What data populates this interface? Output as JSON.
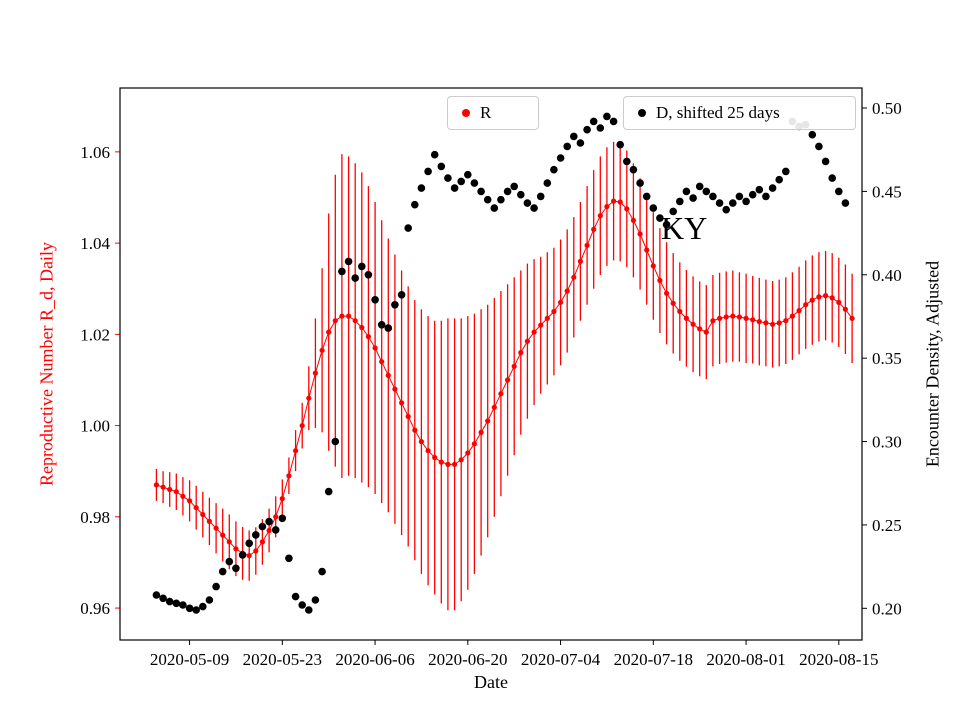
{
  "chart_data": {
    "type": "scatter",
    "title": "",
    "annotation": "KY",
    "xlabel": "Date",
    "ylabel_left": "Reproductive Number R_d, Daily",
    "ylabel_right": "Encounter Density, Adjusted",
    "colors": {
      "red": "#ff0000",
      "black": "#000000",
      "legend_frame": "#cccccc"
    },
    "x_tick_labels": [
      "2020-05-09",
      "2020-05-23",
      "2020-06-06",
      "2020-06-20",
      "2020-07-04",
      "2020-07-18",
      "2020-08-01",
      "2020-08-15"
    ],
    "yticks_left": [
      0.96,
      0.98,
      1.0,
      1.02,
      1.04,
      1.06
    ],
    "yticks_right": [
      0.2,
      0.25,
      0.3,
      0.35,
      0.4,
      0.45,
      0.5
    ],
    "ylim_left": [
      0.953,
      1.074
    ],
    "ylim_right": [
      0.181,
      0.512
    ],
    "xlim_days_from_first_tick": [
      -10.5,
      101.5
    ],
    "legend": [
      {
        "label": "R",
        "color": "#ff0000"
      },
      {
        "label": "D, shifted 25 days",
        "color": "#000000"
      }
    ],
    "series": [
      {
        "name": "R",
        "type": "errorbar",
        "axis": "left",
        "color": "#ff0000",
        "points": [
          [
            "2020-05-04",
            0.987,
            0.0035
          ],
          [
            "2020-05-05",
            0.9865,
            0.0035
          ],
          [
            "2020-05-06",
            0.986,
            0.0038
          ],
          [
            "2020-05-07",
            0.9855,
            0.004
          ],
          [
            "2020-05-08",
            0.9845,
            0.0042
          ],
          [
            "2020-05-09",
            0.9835,
            0.0045
          ],
          [
            "2020-05-10",
            0.982,
            0.0048
          ],
          [
            "2020-05-11",
            0.9805,
            0.005
          ],
          [
            "2020-05-12",
            0.979,
            0.0052
          ],
          [
            "2020-05-13",
            0.9775,
            0.0055
          ],
          [
            "2020-05-14",
            0.976,
            0.0058
          ],
          [
            "2020-05-15",
            0.9745,
            0.006
          ],
          [
            "2020-05-16",
            0.973,
            0.006
          ],
          [
            "2020-05-17",
            0.972,
            0.0058
          ],
          [
            "2020-05-18",
            0.9715,
            0.0055
          ],
          [
            "2020-05-19",
            0.9725,
            0.0052
          ],
          [
            "2020-05-20",
            0.9745,
            0.005
          ],
          [
            "2020-05-21",
            0.977,
            0.0048
          ],
          [
            "2020-05-22",
            0.98,
            0.0045
          ],
          [
            "2020-05-23",
            0.984,
            0.0042
          ],
          [
            "2020-05-24",
            0.989,
            0.004
          ],
          [
            "2020-05-25",
            0.9945,
            0.0045
          ],
          [
            "2020-05-26",
            1.0,
            0.005
          ],
          [
            "2020-05-27",
            1.006,
            0.007
          ],
          [
            "2020-05-28",
            1.0115,
            0.012
          ],
          [
            "2020-05-29",
            1.0165,
            0.018
          ],
          [
            "2020-05-30",
            1.0205,
            0.026
          ],
          [
            "2020-05-31",
            1.023,
            0.032
          ],
          [
            "2020-06-01",
            1.024,
            0.0355
          ],
          [
            "2020-06-02",
            1.024,
            0.035
          ],
          [
            "2020-06-03",
            1.023,
            0.0345
          ],
          [
            "2020-06-04",
            1.0215,
            0.034
          ],
          [
            "2020-06-05",
            1.0195,
            0.033
          ],
          [
            "2020-06-06",
            1.017,
            0.032
          ],
          [
            "2020-06-07",
            1.014,
            0.031
          ],
          [
            "2020-06-08",
            1.011,
            0.03
          ],
          [
            "2020-06-09",
            1.008,
            0.0295
          ],
          [
            "2020-06-10",
            1.005,
            0.029
          ],
          [
            "2020-06-11",
            1.002,
            0.0285
          ],
          [
            "2020-06-12",
            0.999,
            0.0285
          ],
          [
            "2020-06-13",
            0.9965,
            0.029
          ],
          [
            "2020-06-14",
            0.9945,
            0.0295
          ],
          [
            "2020-06-15",
            0.993,
            0.03
          ],
          [
            "2020-06-16",
            0.992,
            0.031
          ],
          [
            "2020-06-17",
            0.9915,
            0.032
          ],
          [
            "2020-06-18",
            0.9915,
            0.032
          ],
          [
            "2020-06-19",
            0.9925,
            0.031
          ],
          [
            "2020-06-20",
            0.994,
            0.03
          ],
          [
            "2020-06-21",
            0.996,
            0.0285
          ],
          [
            "2020-06-22",
            0.9985,
            0.027
          ],
          [
            "2020-06-23",
            1.001,
            0.0255
          ],
          [
            "2020-06-24",
            1.004,
            0.024
          ],
          [
            "2020-06-25",
            1.007,
            0.0225
          ],
          [
            "2020-06-26",
            1.01,
            0.021
          ],
          [
            "2020-06-27",
            1.013,
            0.0195
          ],
          [
            "2020-06-28",
            1.016,
            0.018
          ],
          [
            "2020-06-29",
            1.0185,
            0.017
          ],
          [
            "2020-06-30",
            1.0205,
            0.016
          ],
          [
            "2020-07-01",
            1.022,
            0.015
          ],
          [
            "2020-07-02",
            1.0235,
            0.0145
          ],
          [
            "2020-07-03",
            1.025,
            0.014
          ],
          [
            "2020-07-04",
            1.027,
            0.0138
          ],
          [
            "2020-07-05",
            1.0295,
            0.0135
          ],
          [
            "2020-07-06",
            1.0325,
            0.0132
          ],
          [
            "2020-07-07",
            1.036,
            0.013
          ],
          [
            "2020-07-08",
            1.0395,
            0.013
          ],
          [
            "2020-07-09",
            1.043,
            0.013
          ],
          [
            "2020-07-10",
            1.046,
            0.013
          ],
          [
            "2020-07-11",
            1.048,
            0.013
          ],
          [
            "2020-07-12",
            1.0492,
            0.013
          ],
          [
            "2020-07-13",
            1.049,
            0.013
          ],
          [
            "2020-07-14",
            1.0475,
            0.0128
          ],
          [
            "2020-07-15",
            1.045,
            0.0125
          ],
          [
            "2020-07-16",
            1.042,
            0.0122
          ],
          [
            "2020-07-17",
            1.0385,
            0.012
          ],
          [
            "2020-07-18",
            1.035,
            0.0118
          ],
          [
            "2020-07-19",
            1.0318,
            0.0115
          ],
          [
            "2020-07-20",
            1.029,
            0.0112
          ],
          [
            "2020-07-21",
            1.0268,
            0.011
          ],
          [
            "2020-07-22",
            1.025,
            0.0108
          ],
          [
            "2020-07-23",
            1.0235,
            0.0106
          ],
          [
            "2020-07-24",
            1.0222,
            0.0105
          ],
          [
            "2020-07-25",
            1.0212,
            0.0104
          ],
          [
            "2020-07-26",
            1.0205,
            0.0103
          ],
          [
            "2020-07-27",
            1.023,
            0.01
          ],
          [
            "2020-07-28",
            1.0235,
            0.01
          ],
          [
            "2020-07-29",
            1.0238,
            0.01
          ],
          [
            "2020-07-30",
            1.024,
            0.01
          ],
          [
            "2020-07-31",
            1.0238,
            0.0098
          ],
          [
            "2020-08-01",
            1.0235,
            0.0098
          ],
          [
            "2020-08-02",
            1.0232,
            0.0096
          ],
          [
            "2020-08-03",
            1.0228,
            0.0096
          ],
          [
            "2020-08-04",
            1.0225,
            0.0095
          ],
          [
            "2020-08-05",
            1.0222,
            0.0095
          ],
          [
            "2020-08-06",
            1.0225,
            0.0095
          ],
          [
            "2020-08-07",
            1.023,
            0.0095
          ],
          [
            "2020-08-08",
            1.024,
            0.0096
          ],
          [
            "2020-08-09",
            1.0252,
            0.0096
          ],
          [
            "2020-08-10",
            1.0265,
            0.0097
          ],
          [
            "2020-08-11",
            1.0275,
            0.0098
          ],
          [
            "2020-08-12",
            1.0282,
            0.0098
          ],
          [
            "2020-08-13",
            1.0285,
            0.0098
          ],
          [
            "2020-08-14",
            1.028,
            0.0098
          ],
          [
            "2020-08-15",
            1.027,
            0.0098
          ],
          [
            "2020-08-16",
            1.0255,
            0.0098
          ],
          [
            "2020-08-17",
            1.0235,
            0.0098
          ]
        ]
      },
      {
        "name": "D, shifted 25 days",
        "type": "scatter",
        "axis": "right",
        "color": "#000000",
        "points": [
          [
            "2020-05-04",
            0.208
          ],
          [
            "2020-05-05",
            0.206
          ],
          [
            "2020-05-06",
            0.204
          ],
          [
            "2020-05-07",
            0.203
          ],
          [
            "2020-05-08",
            0.202
          ],
          [
            "2020-05-09",
            0.2
          ],
          [
            "2020-05-10",
            0.199
          ],
          [
            "2020-05-11",
            0.201
          ],
          [
            "2020-05-12",
            0.205
          ],
          [
            "2020-05-13",
            0.213
          ],
          [
            "2020-05-14",
            0.222
          ],
          [
            "2020-05-15",
            0.228
          ],
          [
            "2020-05-16",
            0.224
          ],
          [
            "2020-05-17",
            0.232
          ],
          [
            "2020-05-18",
            0.239
          ],
          [
            "2020-05-19",
            0.244
          ],
          [
            "2020-05-20",
            0.249
          ],
          [
            "2020-05-21",
            0.252
          ],
          [
            "2020-05-22",
            0.247
          ],
          [
            "2020-05-23",
            0.254
          ],
          [
            "2020-05-24",
            0.23
          ],
          [
            "2020-05-25",
            0.207
          ],
          [
            "2020-05-26",
            0.202
          ],
          [
            "2020-05-27",
            0.199
          ],
          [
            "2020-05-28",
            0.205
          ],
          [
            "2020-05-29",
            0.222
          ],
          [
            "2020-05-30",
            0.27
          ],
          [
            "2020-05-31",
            0.3
          ],
          [
            "2020-06-01",
            0.402
          ],
          [
            "2020-06-02",
            0.408
          ],
          [
            "2020-06-03",
            0.398
          ],
          [
            "2020-06-04",
            0.405
          ],
          [
            "2020-06-05",
            0.4
          ],
          [
            "2020-06-06",
            0.385
          ],
          [
            "2020-06-07",
            0.37
          ],
          [
            "2020-06-08",
            0.368
          ],
          [
            "2020-06-09",
            0.382
          ],
          [
            "2020-06-10",
            0.388
          ],
          [
            "2020-06-11",
            0.428
          ],
          [
            "2020-06-12",
            0.442
          ],
          [
            "2020-06-13",
            0.452
          ],
          [
            "2020-06-14",
            0.462
          ],
          [
            "2020-06-15",
            0.472
          ],
          [
            "2020-06-16",
            0.465
          ],
          [
            "2020-06-17",
            0.458
          ],
          [
            "2020-06-18",
            0.452
          ],
          [
            "2020-06-19",
            0.456
          ],
          [
            "2020-06-20",
            0.46
          ],
          [
            "2020-06-21",
            0.455
          ],
          [
            "2020-06-22",
            0.45
          ],
          [
            "2020-06-23",
            0.445
          ],
          [
            "2020-06-24",
            0.44
          ],
          [
            "2020-06-25",
            0.445
          ],
          [
            "2020-06-26",
            0.45
          ],
          [
            "2020-06-27",
            0.453
          ],
          [
            "2020-06-28",
            0.448
          ],
          [
            "2020-06-29",
            0.443
          ],
          [
            "2020-06-30",
            0.44
          ],
          [
            "2020-07-01",
            0.447
          ],
          [
            "2020-07-02",
            0.455
          ],
          [
            "2020-07-03",
            0.463
          ],
          [
            "2020-07-04",
            0.47
          ],
          [
            "2020-07-05",
            0.477
          ],
          [
            "2020-07-06",
            0.483
          ],
          [
            "2020-07-07",
            0.479
          ],
          [
            "2020-07-08",
            0.487
          ],
          [
            "2020-07-09",
            0.492
          ],
          [
            "2020-07-10",
            0.488
          ],
          [
            "2020-07-11",
            0.495
          ],
          [
            "2020-07-12",
            0.492
          ],
          [
            "2020-07-13",
            0.478
          ],
          [
            "2020-07-14",
            0.468
          ],
          [
            "2020-07-15",
            0.463
          ],
          [
            "2020-07-16",
            0.455
          ],
          [
            "2020-07-17",
            0.447
          ],
          [
            "2020-07-18",
            0.44
          ],
          [
            "2020-07-19",
            0.434
          ],
          [
            "2020-07-20",
            0.43
          ],
          [
            "2020-07-21",
            0.438
          ],
          [
            "2020-07-22",
            0.444
          ],
          [
            "2020-07-23",
            0.45
          ],
          [
            "2020-07-24",
            0.446
          ],
          [
            "2020-07-25",
            0.453
          ],
          [
            "2020-07-26",
            0.45
          ],
          [
            "2020-07-27",
            0.447
          ],
          [
            "2020-07-28",
            0.443
          ],
          [
            "2020-07-29",
            0.439
          ],
          [
            "2020-07-30",
            0.443
          ],
          [
            "2020-07-31",
            0.447
          ],
          [
            "2020-08-01",
            0.444
          ],
          [
            "2020-08-02",
            0.448
          ],
          [
            "2020-08-03",
            0.451
          ],
          [
            "2020-08-04",
            0.447
          ],
          [
            "2020-08-05",
            0.452
          ],
          [
            "2020-08-06",
            0.457
          ],
          [
            "2020-08-07",
            0.462
          ],
          [
            "2020-08-08",
            0.492
          ],
          [
            "2020-08-09",
            0.489
          ],
          [
            "2020-08-10",
            0.49
          ],
          [
            "2020-08-11",
            0.484
          ],
          [
            "2020-08-12",
            0.477
          ],
          [
            "2020-08-13",
            0.468
          ],
          [
            "2020-08-14",
            0.458
          ],
          [
            "2020-08-15",
            0.45
          ],
          [
            "2020-08-16",
            0.443
          ]
        ]
      }
    ]
  }
}
